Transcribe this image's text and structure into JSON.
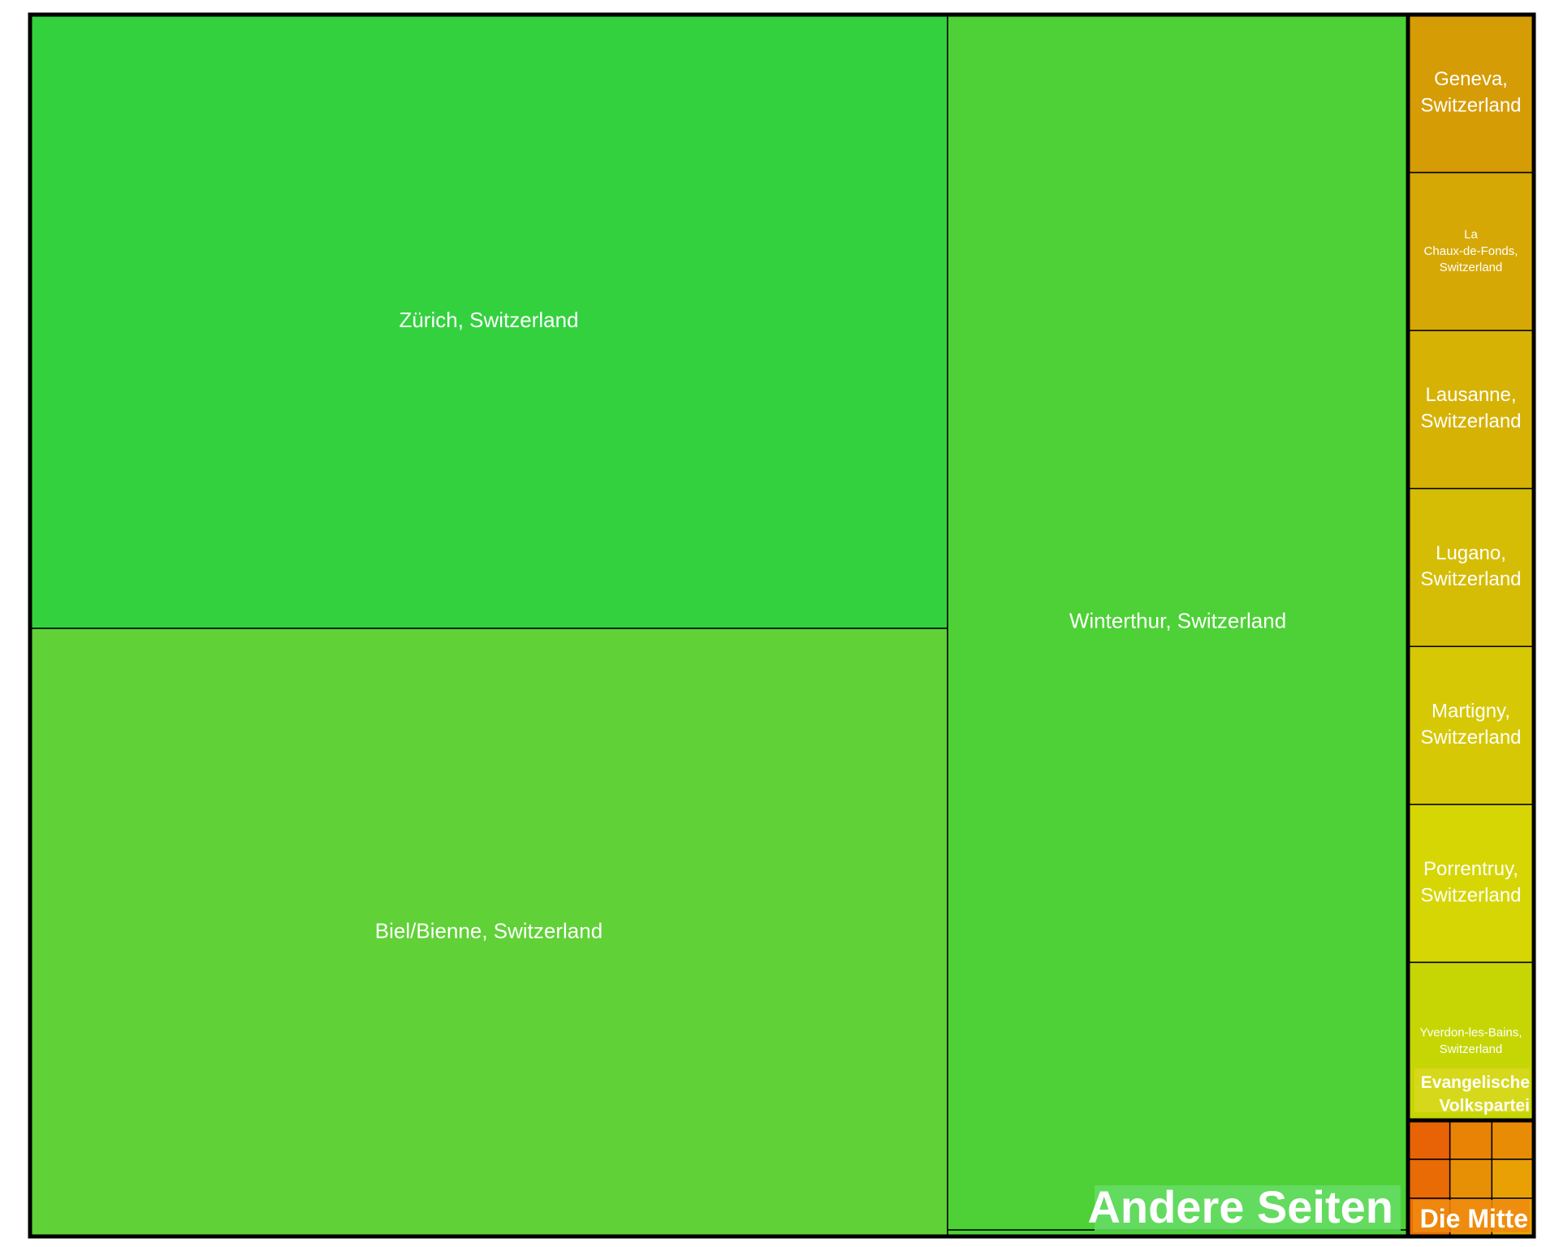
{
  "chart_data": {
    "type": "treemap",
    "title": "",
    "groups": [
      {
        "name": "Andere Seiten",
        "label_bg": "#66dd66",
        "children": [
          {
            "name": "Zürich, Switzerland",
            "color": "#34d13f"
          },
          {
            "name": "Biel/Bienne, Switzerland",
            "color": "#60d137"
          },
          {
            "name": "Winterthur, Switzerland",
            "color": "#4dd136"
          }
        ]
      },
      {
        "name": "Evangelische Volkspartei",
        "label_bg": "#d8d820",
        "children": [
          {
            "name": "Geneva, Switzerland",
            "color": "#d69c05"
          },
          {
            "name": "La Chaux-de-Fonds, Switzerland",
            "color": "#d6a805"
          },
          {
            "name": "Lausanne, Switzerland",
            "color": "#d6b205"
          },
          {
            "name": "Lugano, Switzerland",
            "color": "#d6bd05"
          },
          {
            "name": "Martigny, Switzerland",
            "color": "#d6c805"
          },
          {
            "name": "Porrentruy, Switzerland",
            "color": "#d6d605"
          },
          {
            "name": "Yverdon-les-Bains, Switzerland",
            "color": "#c6d605"
          }
        ]
      },
      {
        "name": "Die Mitte",
        "label_bg": "#f08a10",
        "children": [
          {
            "name": "",
            "color": "#e86305"
          },
          {
            "name": "",
            "color": "#e88305"
          },
          {
            "name": "",
            "color": "#e88c05"
          },
          {
            "name": "",
            "color": "#e86b05"
          },
          {
            "name": "",
            "color": "#e89005"
          },
          {
            "name": "",
            "color": "#e8a005"
          },
          {
            "name": "",
            "color": "#e87005"
          },
          {
            "name": "",
            "color": "#e89505"
          },
          {
            "name": "",
            "color": "#e8a805"
          }
        ]
      }
    ]
  }
}
